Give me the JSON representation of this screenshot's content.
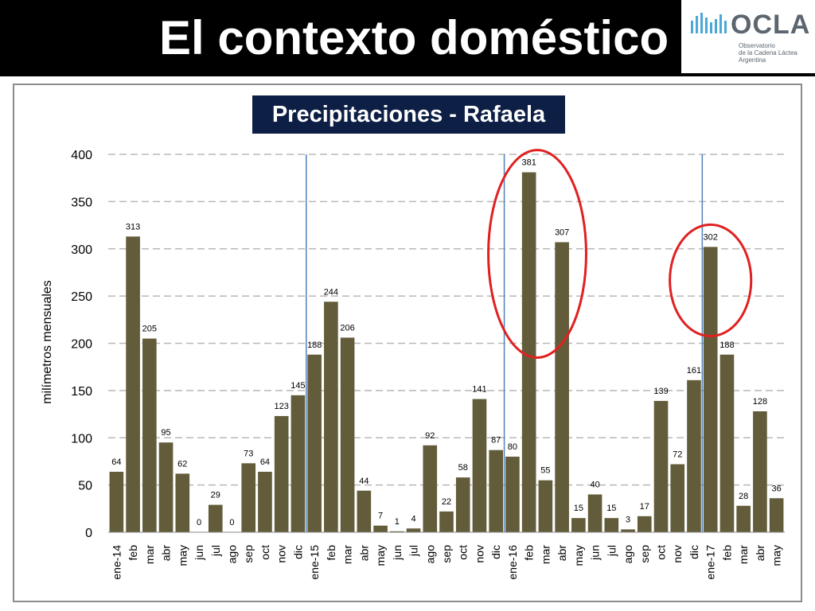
{
  "slide": {
    "title": "El contexto doméstico"
  },
  "logo": {
    "name": "OCLA",
    "subtitle_lines": [
      "Observatorio",
      "de la Cadena Láctea",
      "Argentina"
    ]
  },
  "colors": {
    "bar": "#635c3a",
    "year_divider": "#4f81bd",
    "highlight_ellipse": "#e02020",
    "title_background": "#0d1f45",
    "header": "#000000"
  },
  "chart_data": {
    "type": "bar",
    "title": "Precipitaciones - Rafaela",
    "xlabel": "",
    "ylabel": "milímetros mensuales",
    "ylim": [
      0,
      400
    ],
    "yticks": [
      0,
      50,
      100,
      150,
      200,
      250,
      300,
      350,
      400
    ],
    "grid": true,
    "categories": [
      "ene-14",
      "feb",
      "mar",
      "abr",
      "may",
      "jun",
      "jul",
      "ago",
      "sep",
      "oct",
      "nov",
      "dic",
      "ene-15",
      "feb",
      "mar",
      "abr",
      "may",
      "jun",
      "jul",
      "ago",
      "sep",
      "oct",
      "nov",
      "dic",
      "ene-16",
      "feb",
      "mar",
      "abr",
      "may",
      "jun",
      "jul",
      "ago",
      "sep",
      "oct",
      "nov",
      "dic",
      "ene-17",
      "feb",
      "mar",
      "abr",
      "may"
    ],
    "values": [
      64,
      313,
      205,
      95,
      62,
      0,
      29,
      0,
      73,
      64,
      123,
      145,
      188,
      244,
      206,
      44,
      7,
      1,
      4,
      92,
      22,
      58,
      141,
      87,
      80,
      381,
      55,
      307,
      15,
      40,
      15,
      3,
      17,
      139,
      72,
      161,
      302,
      188,
      28,
      128,
      36
    ],
    "year_dividers_before": [
      "ene-15",
      "ene-16",
      "ene-17"
    ],
    "highlighted_periods": [
      [
        "ene-16",
        "abr"
      ],
      [
        "dic",
        "feb"
      ]
    ]
  }
}
